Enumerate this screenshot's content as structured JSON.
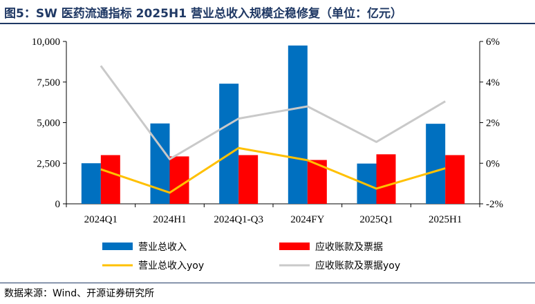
{
  "figure": {
    "title": "图5：SW 医药流通指标 2025H1 营业总收入规模企稳修复（单位：亿元）",
    "source": "数据来源：Wind、开源证券研究所"
  },
  "chart_data": {
    "type": "bar",
    "categories": [
      "2024Q1",
      "2024H1",
      "2024Q1-Q3",
      "2024FY",
      "2025Q1",
      "2025H1"
    ],
    "left_axis": {
      "ylim": [
        0,
        10000
      ],
      "ticks": [
        0,
        2500,
        5000,
        7500,
        10000
      ],
      "tick_labels": [
        "0",
        "2,500",
        "5,000",
        "7,500",
        "10,000"
      ]
    },
    "right_axis": {
      "ylim": [
        -2,
        6
      ],
      "ticks": [
        -2,
        0,
        2,
        4,
        6
      ],
      "tick_labels": [
        "-2%",
        "0%",
        "2%",
        "4%",
        "6%"
      ]
    },
    "series": [
      {
        "name": "营业总收入",
        "kind": "bar",
        "axis": "left",
        "color": "#0070c0",
        "values": [
          2500,
          4950,
          7400,
          9750,
          2480,
          4930
        ]
      },
      {
        "name": "应收账款及票据",
        "kind": "bar",
        "axis": "left",
        "color": "#ff0000",
        "values": [
          3000,
          2920,
          3000,
          2700,
          3050,
          3000
        ]
      },
      {
        "name": "营业总收入yoy",
        "kind": "line",
        "axis": "right",
        "color": "#ffc000",
        "values": [
          -0.3,
          -1.45,
          0.75,
          0.15,
          -1.25,
          -0.25
        ]
      },
      {
        "name": "应收账款及票据yoy",
        "kind": "line",
        "axis": "right",
        "color": "#c9c9c9",
        "values": [
          4.8,
          0.2,
          2.2,
          2.8,
          1.05,
          3.05
        ]
      }
    ],
    "legend_position": "bottom",
    "grid": false
  }
}
